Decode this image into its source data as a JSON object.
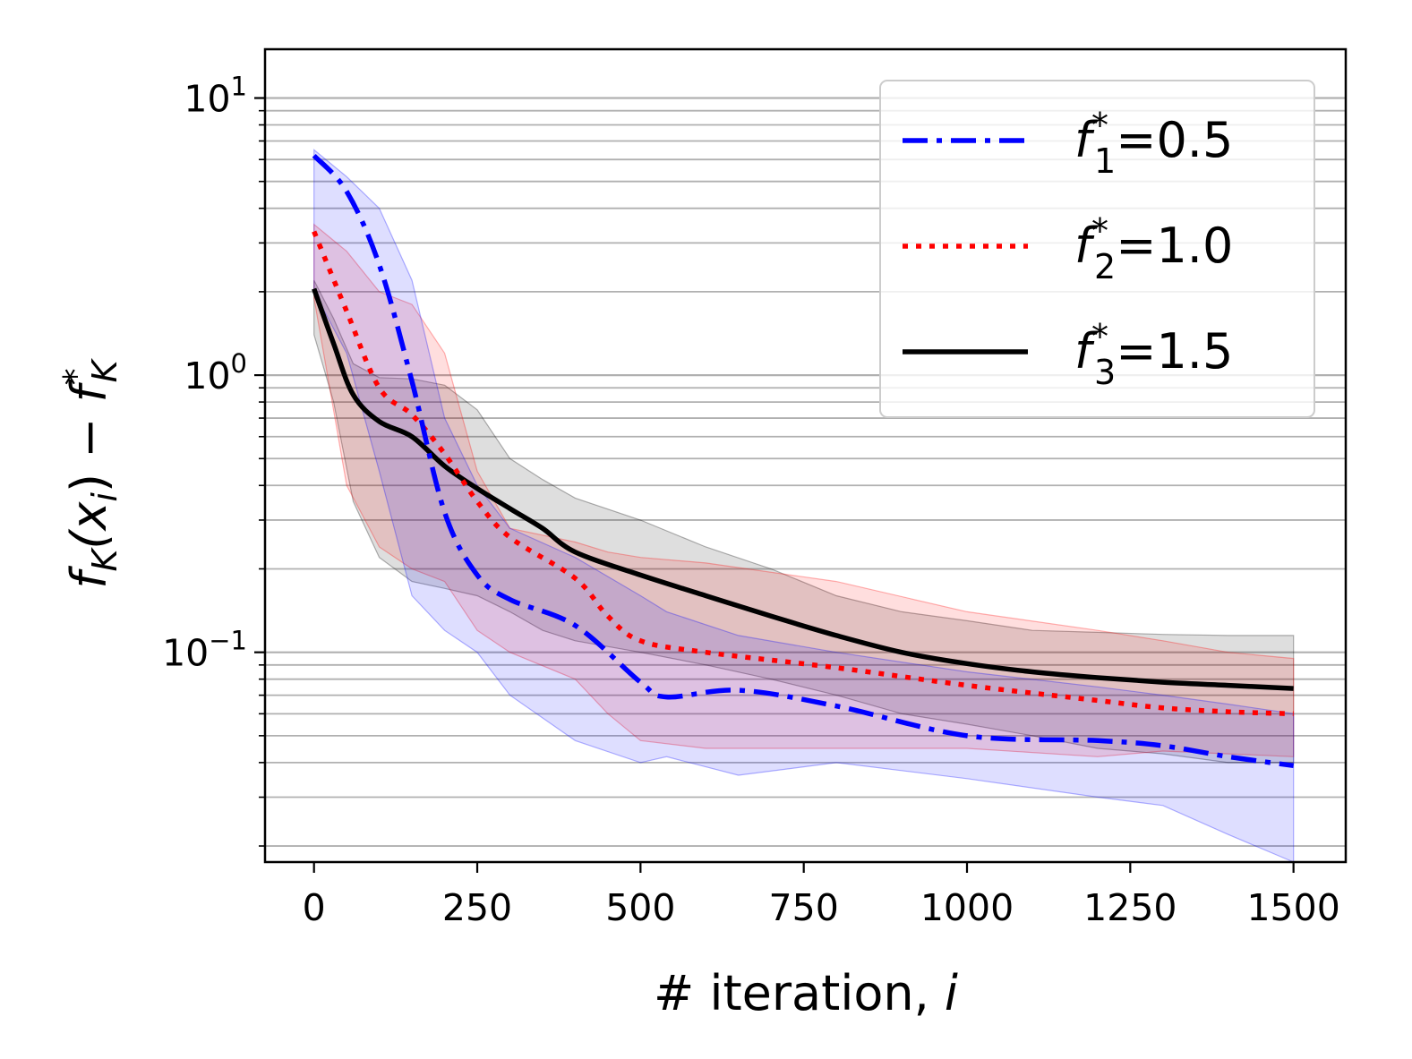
{
  "chart_data": {
    "type": "line",
    "title": "",
    "xlabel": "# iteration, i",
    "ylabel": "f_K(x_i) − f_K*",
    "xlim": [
      -75,
      1580
    ],
    "ylim": [
      0.0175,
      15
    ],
    "yscale": "log",
    "grid": "horizontal major and minor",
    "legend_position": "top-right",
    "x_ticks": [
      0,
      250,
      500,
      750,
      1000,
      1250,
      1500
    ],
    "x_tick_labels": [
      "0",
      "250",
      "500",
      "750",
      "1000",
      "1250",
      "1500"
    ],
    "y_ticks": [
      {
        "value": 10,
        "base": "10",
        "exp": "1"
      },
      {
        "value": 1,
        "base": "10",
        "exp": "0"
      },
      {
        "value": 0.1,
        "base": "10",
        "exp": "−1"
      }
    ],
    "series": [
      {
        "name": "f_1*=0.5",
        "label_sub": "1",
        "label_value": "=0.5",
        "color": "#0000ff",
        "style": "dashdot",
        "x": [
          0,
          50,
          100,
          150,
          200,
          250,
          300,
          400,
          500,
          540,
          650,
          800,
          1000,
          1200,
          1300,
          1400,
          1500
        ],
        "y": [
          6.2,
          4.6,
          2.5,
          0.95,
          0.32,
          0.19,
          0.155,
          0.125,
          0.078,
          0.069,
          0.073,
          0.064,
          0.05,
          0.048,
          0.046,
          0.042,
          0.039
        ],
        "y_low": [
          2.0,
          1.2,
          0.45,
          0.16,
          0.12,
          0.1,
          0.07,
          0.048,
          0.04,
          0.042,
          0.036,
          0.04,
          0.035,
          0.03,
          0.028,
          0.022,
          0.0175
        ],
        "y_high": [
          6.5,
          5.2,
          4.0,
          2.2,
          0.7,
          0.4,
          0.28,
          0.22,
          0.16,
          0.14,
          0.115,
          0.1,
          0.085,
          0.075,
          0.07,
          0.065,
          0.06
        ]
      },
      {
        "name": "f_2*=1.0",
        "label_sub": "2",
        "label_value": "=1.0",
        "color": "#ff0000",
        "style": "dotted",
        "x": [
          0,
          50,
          100,
          150,
          200,
          250,
          300,
          400,
          450,
          500,
          600,
          800,
          1000,
          1200,
          1300,
          1400,
          1500
        ],
        "y": [
          3.3,
          1.7,
          0.9,
          0.72,
          0.52,
          0.35,
          0.26,
          0.185,
          0.135,
          0.11,
          0.1,
          0.088,
          0.076,
          0.067,
          0.063,
          0.061,
          0.06
        ],
        "y_low": [
          1.9,
          0.4,
          0.24,
          0.2,
          0.18,
          0.12,
          0.1,
          0.08,
          0.06,
          0.048,
          0.045,
          0.045,
          0.045,
          0.042,
          0.044,
          0.043,
          0.042
        ],
        "y_high": [
          3.5,
          2.8,
          2.0,
          1.8,
          1.2,
          0.45,
          0.28,
          0.25,
          0.23,
          0.22,
          0.21,
          0.18,
          0.14,
          0.12,
          0.11,
          0.1,
          0.095
        ]
      },
      {
        "name": "f_3*=1.5",
        "label_sub": "3",
        "label_value": "=1.5",
        "color": "#000000",
        "style": "solid",
        "x": [
          0,
          30,
          60,
          100,
          150,
          200,
          250,
          300,
          350,
          400,
          500,
          600,
          700,
          800,
          900,
          1000,
          1100,
          1200,
          1300,
          1400,
          1500
        ],
        "y": [
          2.05,
          1.3,
          0.85,
          0.68,
          0.6,
          0.47,
          0.39,
          0.33,
          0.28,
          0.23,
          0.19,
          0.16,
          0.135,
          0.115,
          0.1,
          0.091,
          0.085,
          0.081,
          0.078,
          0.076,
          0.074
        ],
        "y_low": [
          1.4,
          0.8,
          0.35,
          0.22,
          0.18,
          0.17,
          0.16,
          0.14,
          0.12,
          0.11,
          0.1,
          0.09,
          0.08,
          0.07,
          0.06,
          0.055,
          0.05,
          0.045,
          0.043,
          0.04,
          0.04
        ],
        "y_high": [
          2.2,
          1.6,
          1.1,
          0.98,
          0.97,
          0.92,
          0.75,
          0.5,
          0.42,
          0.36,
          0.3,
          0.24,
          0.2,
          0.16,
          0.14,
          0.13,
          0.12,
          0.118,
          0.116,
          0.115,
          0.115
        ]
      }
    ]
  }
}
